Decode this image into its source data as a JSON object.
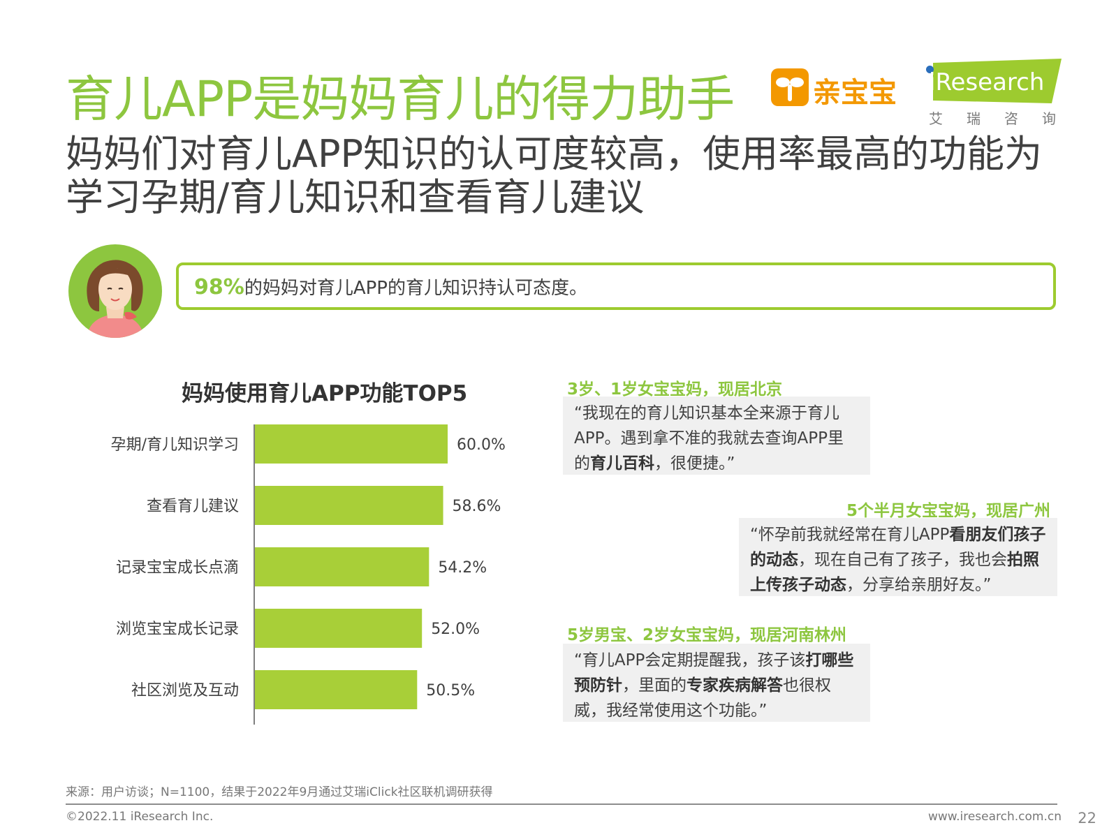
{
  "header": {
    "title": "育儿APP是妈妈育儿的得力助手",
    "qbb_logo_text": "亲宝宝",
    "iresearch_logo_text": "iResearch",
    "iresearch_cn": "艾瑞咨询"
  },
  "subtitle": "妈妈们对育儿APP知识的认可度较高，使用率最高的功能为学习孕期/育儿知识和查看育儿建议",
  "highlight": {
    "percent": "98%",
    "text": "的妈妈对育儿APP的育儿知识持认可态度。"
  },
  "chart_title": "妈妈使用育儿APP功能TOP5",
  "chart_data": {
    "type": "bar",
    "orientation": "horizontal",
    "title": "妈妈使用育儿APP功能TOP5",
    "categories": [
      "孕期/育儿知识学习",
      "查看育儿建议",
      "记录宝宝成长点滴",
      "浏览宝宝成长记录",
      "社区浏览及互动"
    ],
    "values": [
      60.0,
      58.6,
      54.2,
      52.0,
      50.5
    ],
    "value_labels": [
      "60.0%",
      "58.6%",
      "54.2%",
      "52.0%",
      "50.5%"
    ],
    "bar_color": "#a8cf38",
    "grid": false
  },
  "quotes": [
    {
      "head": "3岁、1岁女宝宝妈，现居北京",
      "parts": [
        {
          "t": "“我现在的育儿知识基本全来源于育儿APP。遇到拿不准的我就去查询APP里的",
          "b": false
        },
        {
          "t": "育儿百科",
          "b": true
        },
        {
          "t": "，很便捷。”",
          "b": false
        }
      ]
    },
    {
      "head": "5个半月女宝宝妈，现居广州",
      "parts": [
        {
          "t": "“怀孕前我就经常在育儿APP",
          "b": false
        },
        {
          "t": "看朋友们孩子的动态",
          "b": true
        },
        {
          "t": "，现在自己有了孩子，我也会",
          "b": false
        },
        {
          "t": "拍照上传孩子动态",
          "b": true
        },
        {
          "t": "，分享给亲朋好友。”",
          "b": false
        }
      ]
    },
    {
      "head": "5岁男宝、2岁女宝宝妈，现居河南林州",
      "parts": [
        {
          "t": "“育儿APP会定期提醒我，孩子该",
          "b": false
        },
        {
          "t": "打哪些预防针",
          "b": true
        },
        {
          "t": "，里面的",
          "b": false
        },
        {
          "t": "专家疾病解答",
          "b": true
        },
        {
          "t": "也很权威，我经常使用这个功能。”",
          "b": false
        }
      ]
    }
  ],
  "footer": {
    "source": "来源：用户访谈；N=1100，结果于2022年9月通过艾瑞iClick社区联机调研获得",
    "copyright": "©2022.11 iResearch Inc.",
    "site": "www.iresearch.com.cn",
    "page": "22"
  },
  "colors": {
    "brand_green": "#8dc63f",
    "bar": "#a8cf38",
    "qbb_orange": "#f39800",
    "iresearch_blue": "#2a6ebb"
  }
}
